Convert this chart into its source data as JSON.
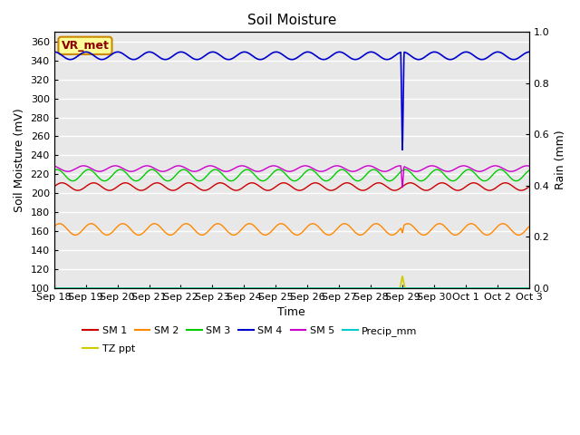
{
  "title": "Soil Moisture",
  "ylabel_left": "Soil Moisture (mV)",
  "ylabel_right": "Rain (mm)",
  "xlabel": "Time",
  "ylim_left": [
    100,
    370
  ],
  "ylim_right": [
    0.0,
    1.0
  ],
  "yticks_left": [
    100,
    120,
    140,
    160,
    180,
    200,
    220,
    240,
    260,
    280,
    300,
    320,
    340,
    360
  ],
  "yticks_right": [
    0.0,
    0.2,
    0.4,
    0.6,
    0.8,
    1.0
  ],
  "n_points": 1500,
  "sm1_base": 207,
  "sm1_amp": 4,
  "sm1_color": "#cc0000",
  "sm2_base": 162,
  "sm2_amp": 6,
  "sm2_color": "#ff8800",
  "sm3_base": 219,
  "sm3_amp": 6,
  "sm3_color": "#00cc00",
  "sm4_base": 345,
  "sm4_amp": 4,
  "sm4_color": "#0000cc",
  "sm5_base": 226,
  "sm5_amp": 3,
  "sm5_color": "#cc00cc",
  "precip_color": "#00cccc",
  "tz_ppt_color": "#cccc00",
  "background_color": "#e8e8e8",
  "grid_color": "#ffffff",
  "annotation_text": "VR_met",
  "annotation_bbox_facecolor": "#ffff99",
  "annotation_bbox_edgecolor": "#cc8800",
  "tick_labels": [
    "Sep 18",
    "Sep 19",
    "Sep 20",
    "Sep 21",
    "Sep 22",
    "Sep 23",
    "Sep 24",
    "Sep 25",
    "Sep 26",
    "Sep 27",
    "Sep 28",
    "Sep 29",
    "Sep 30",
    "Oct 1",
    "Oct 2",
    "Oct 3"
  ],
  "legend_labels_row1": [
    "SM 1",
    "SM 2",
    "SM 3",
    "SM 4",
    "SM 5",
    "Precip_mm"
  ],
  "legend_colors_row1": [
    "#cc0000",
    "#ff8800",
    "#00cc00",
    "#0000cc",
    "#cc00cc",
    "#00cccc"
  ],
  "legend_labels_row2": [
    "TZ ppt"
  ],
  "legend_colors_row2": [
    "#cccc00"
  ]
}
